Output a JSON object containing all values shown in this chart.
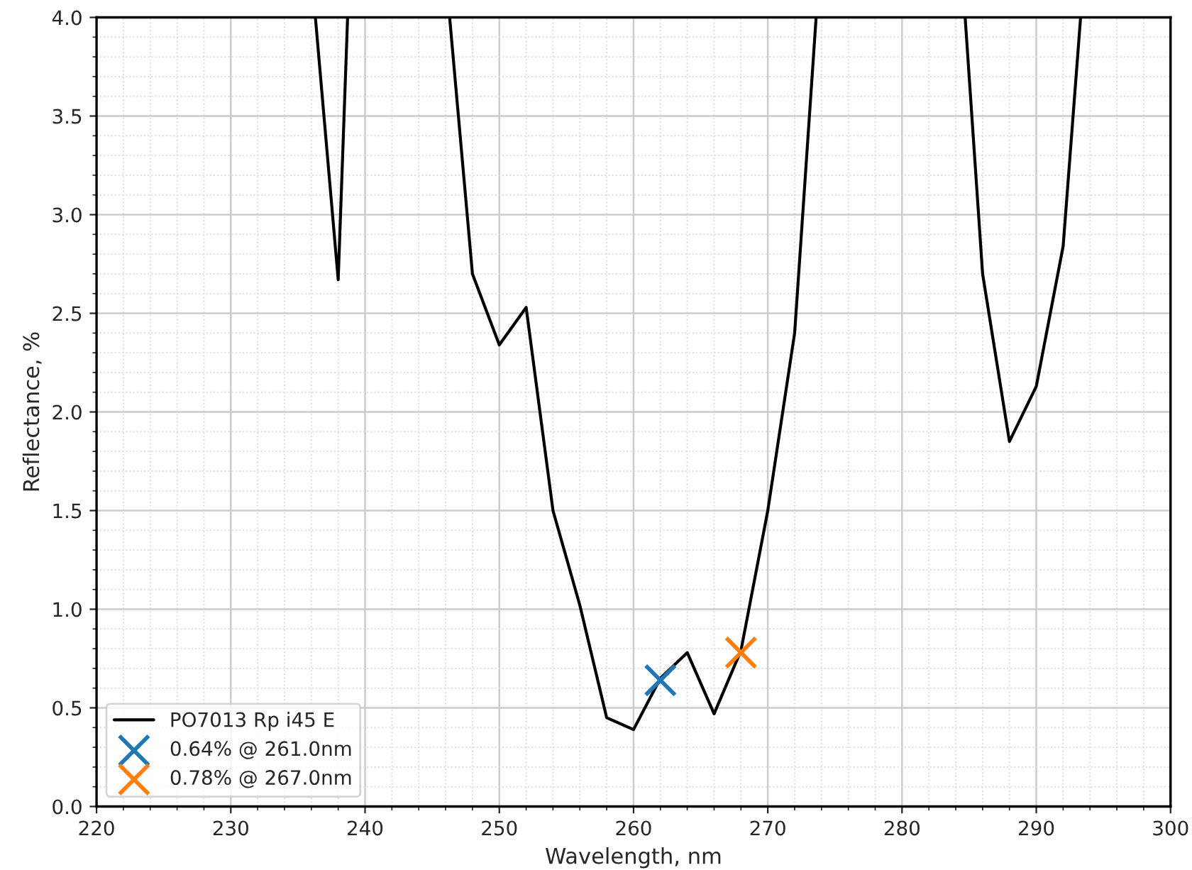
{
  "chart_data": {
    "type": "line",
    "xlabel": "Wavelength, nm",
    "ylabel": "Reflectance, %",
    "xlim": [
      220,
      300
    ],
    "xticks": [
      220,
      230,
      240,
      250,
      260,
      270,
      280,
      290,
      300
    ],
    "ylim": [
      0.0,
      4.0
    ],
    "yticks": [
      {
        "value": 0,
        "label": "0.0"
      },
      0.5,
      {
        "value": 1,
        "label": "1.0"
      },
      1.5,
      {
        "value": 2,
        "label": "2.0"
      },
      2.5,
      {
        "value": 3,
        "label": "3.0"
      },
      3.5,
      {
        "value": 4,
        "label": "4.0"
      }
    ],
    "grid": true,
    "legend": "bottom left",
    "series": [
      {
        "name": "PO7013 Rp i45 E",
        "color": "#000000",
        "marker": "none",
        "x": [
          236.3,
          238,
          238.7,
          242,
          246.3,
          248,
          250,
          252,
          254,
          256,
          258,
          260,
          262,
          264,
          266,
          268,
          270,
          272,
          273.6,
          280,
          284.7,
          286,
          288,
          290,
          292,
          293.3
        ],
        "values": [
          4.0,
          2.67,
          4.0,
          null,
          4.0,
          2.7,
          2.34,
          2.53,
          1.5,
          1.02,
          0.45,
          0.39,
          0.65,
          0.78,
          0.47,
          0.79,
          1.5,
          2.4,
          4.0,
          null,
          4.0,
          2.7,
          1.85,
          2.13,
          2.84,
          4.0
        ]
      },
      {
        "name": "0.64% @ 261.0nm",
        "type": "scatter",
        "color": "#1f77b4",
        "marker": "cross",
        "x": [
          262
        ],
        "values": [
          0.64
        ]
      },
      {
        "name": "0.78% @ 267.0nm",
        "type": "scatter",
        "color": "#ff7f0e",
        "marker": "cross",
        "x": [
          268
        ],
        "values": [
          0.78
        ]
      }
    ]
  }
}
